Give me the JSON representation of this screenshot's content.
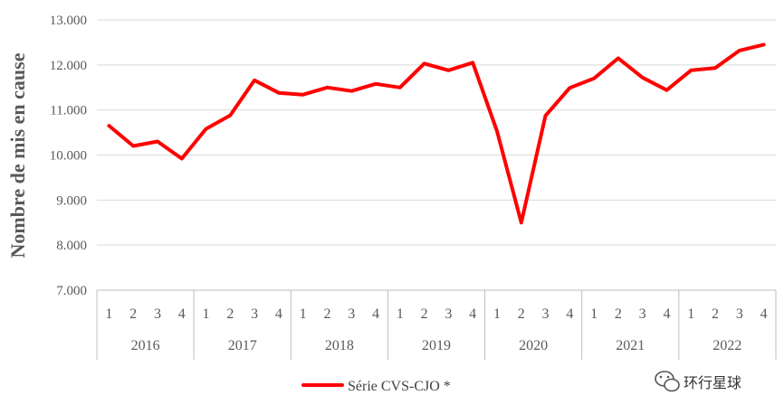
{
  "chart_data": {
    "type": "line",
    "ylabel": "Nombre de mis en cause",
    "ylim": [
      7000,
      13000
    ],
    "ytick_labels": [
      "7.000",
      "8.000",
      "9.000",
      "10.000",
      "11.000",
      "12.000",
      "13.000"
    ],
    "ytick_values": [
      7000,
      8000,
      9000,
      10000,
      11000,
      12000,
      13000
    ],
    "grid": "horizontal",
    "years": [
      "2016",
      "2017",
      "2018",
      "2019",
      "2020",
      "2021",
      "2022"
    ],
    "quarters": [
      "1",
      "2",
      "3",
      "4"
    ],
    "series": [
      {
        "name": "Série CVS-CJO *",
        "color": "#ff0000",
        "values": [
          10650,
          10200,
          10300,
          9920,
          10580,
          10880,
          11660,
          11380,
          11340,
          11500,
          11420,
          11580,
          11500,
          12030,
          11880,
          12050,
          10530,
          8500,
          10870,
          11490,
          11700,
          12150,
          11720,
          11440,
          11880,
          11930,
          12320,
          12450
        ]
      }
    ],
    "legend_position": "bottom"
  },
  "watermark": {
    "text": "环行星球",
    "icon": "wechat-icon"
  }
}
